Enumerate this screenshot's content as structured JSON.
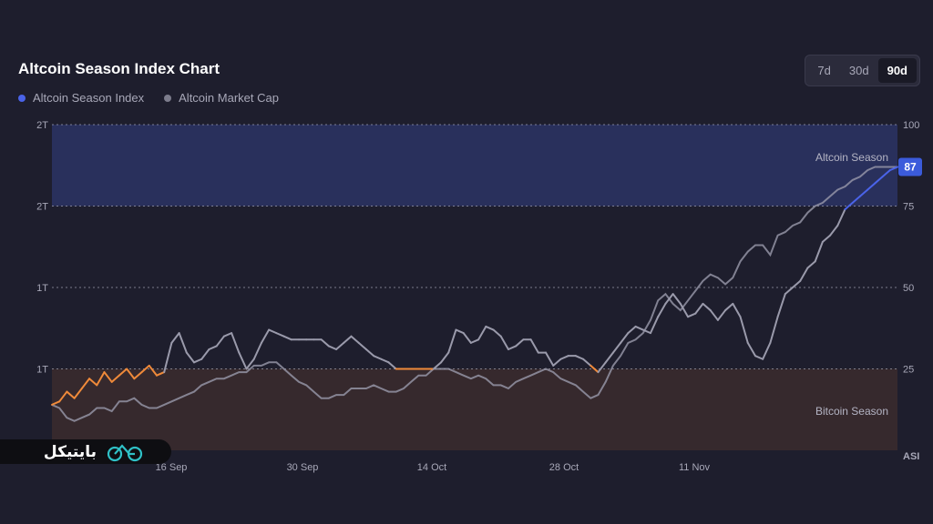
{
  "header": {
    "title": "Altcoin Season Index Chart",
    "legend": [
      {
        "label": "Altcoin Season Index",
        "color": "#4a63e8"
      },
      {
        "label": "Altcoin Market Cap",
        "color": "#7c7c8c"
      }
    ],
    "ranges": [
      {
        "label": "7d",
        "active": false
      },
      {
        "label": "30d",
        "active": false
      },
      {
        "label": "90d",
        "active": true
      }
    ]
  },
  "chart_data": {
    "type": "line",
    "x_labels": [
      "16 Sep",
      "30 Sep",
      "14 Oct",
      "28 Oct",
      "11 Nov"
    ],
    "y_left_ticks": [
      "2T",
      "2T",
      "1T",
      "1T"
    ],
    "y_right_ticks": [
      "100",
      "75",
      "50",
      "25",
      "ASI"
    ],
    "y_right_range": [
      0,
      100
    ],
    "zones": [
      {
        "label": "Altcoin Season",
        "from": 75,
        "to": 100,
        "color": "#29305c"
      },
      {
        "label": "Bitcoin Season",
        "from": 0,
        "to": 25,
        "color": "#36292d"
      }
    ],
    "current_value_label": "87",
    "series": [
      {
        "name": "Altcoin Season Index",
        "colors": {
          "bitcoin_season": "#f08a3a",
          "neutral": "#9a9aab",
          "altcoin_season": "#4a63e8"
        },
        "values": [
          14,
          15,
          18,
          16,
          19,
          22,
          20,
          24,
          21,
          23,
          25,
          22,
          24,
          26,
          23,
          24,
          33,
          36,
          30,
          27,
          28,
          31,
          32,
          35,
          36,
          30,
          25,
          28,
          33,
          37,
          36,
          35,
          34,
          34,
          34,
          34,
          34,
          32,
          31,
          33,
          35,
          33,
          31,
          29,
          28,
          27,
          25,
          25,
          25,
          25,
          25,
          25,
          27,
          30,
          37,
          36,
          33,
          34,
          38,
          37,
          35,
          31,
          32,
          34,
          34,
          30,
          30,
          26,
          28,
          29,
          29,
          28,
          26,
          24,
          27,
          30,
          33,
          36,
          38,
          37,
          36,
          41,
          45,
          48,
          45,
          41,
          42,
          45,
          43,
          40,
          43,
          45,
          41,
          33,
          29,
          28,
          33,
          41,
          48,
          50,
          52,
          56,
          58,
          64,
          66,
          69,
          74,
          76,
          78,
          80,
          82,
          84,
          86,
          87
        ]
      },
      {
        "name": "Altcoin Market Cap",
        "color": "#9a9aab",
        "values": [
          14,
          13,
          10,
          9,
          10,
          11,
          13,
          13,
          12,
          15,
          15,
          16,
          14,
          13,
          13,
          14,
          15,
          16,
          17,
          18,
          20,
          21,
          22,
          22,
          23,
          24,
          24,
          26,
          26,
          27,
          27,
          25,
          23,
          21,
          20,
          18,
          16,
          16,
          17,
          17,
          19,
          19,
          19,
          20,
          19,
          18,
          18,
          19,
          21,
          23,
          23,
          25,
          25,
          25,
          24,
          23,
          22,
          23,
          22,
          20,
          20,
          19,
          21,
          22,
          23,
          24,
          25,
          24,
          22,
          21,
          20,
          18,
          16,
          17,
          21,
          26,
          29,
          33,
          34,
          36,
          40,
          46,
          48,
          45,
          43,
          46,
          49,
          52,
          54,
          53,
          51,
          53,
          58,
          61,
          63,
          63,
          60,
          66,
          67,
          69,
          70,
          73,
          75,
          76,
          78,
          80,
          81,
          83,
          84,
          86,
          87,
          87,
          87,
          87
        ]
      }
    ]
  },
  "logo": {
    "text": "بایتیکل",
    "icon": "bicycle-icon"
  }
}
